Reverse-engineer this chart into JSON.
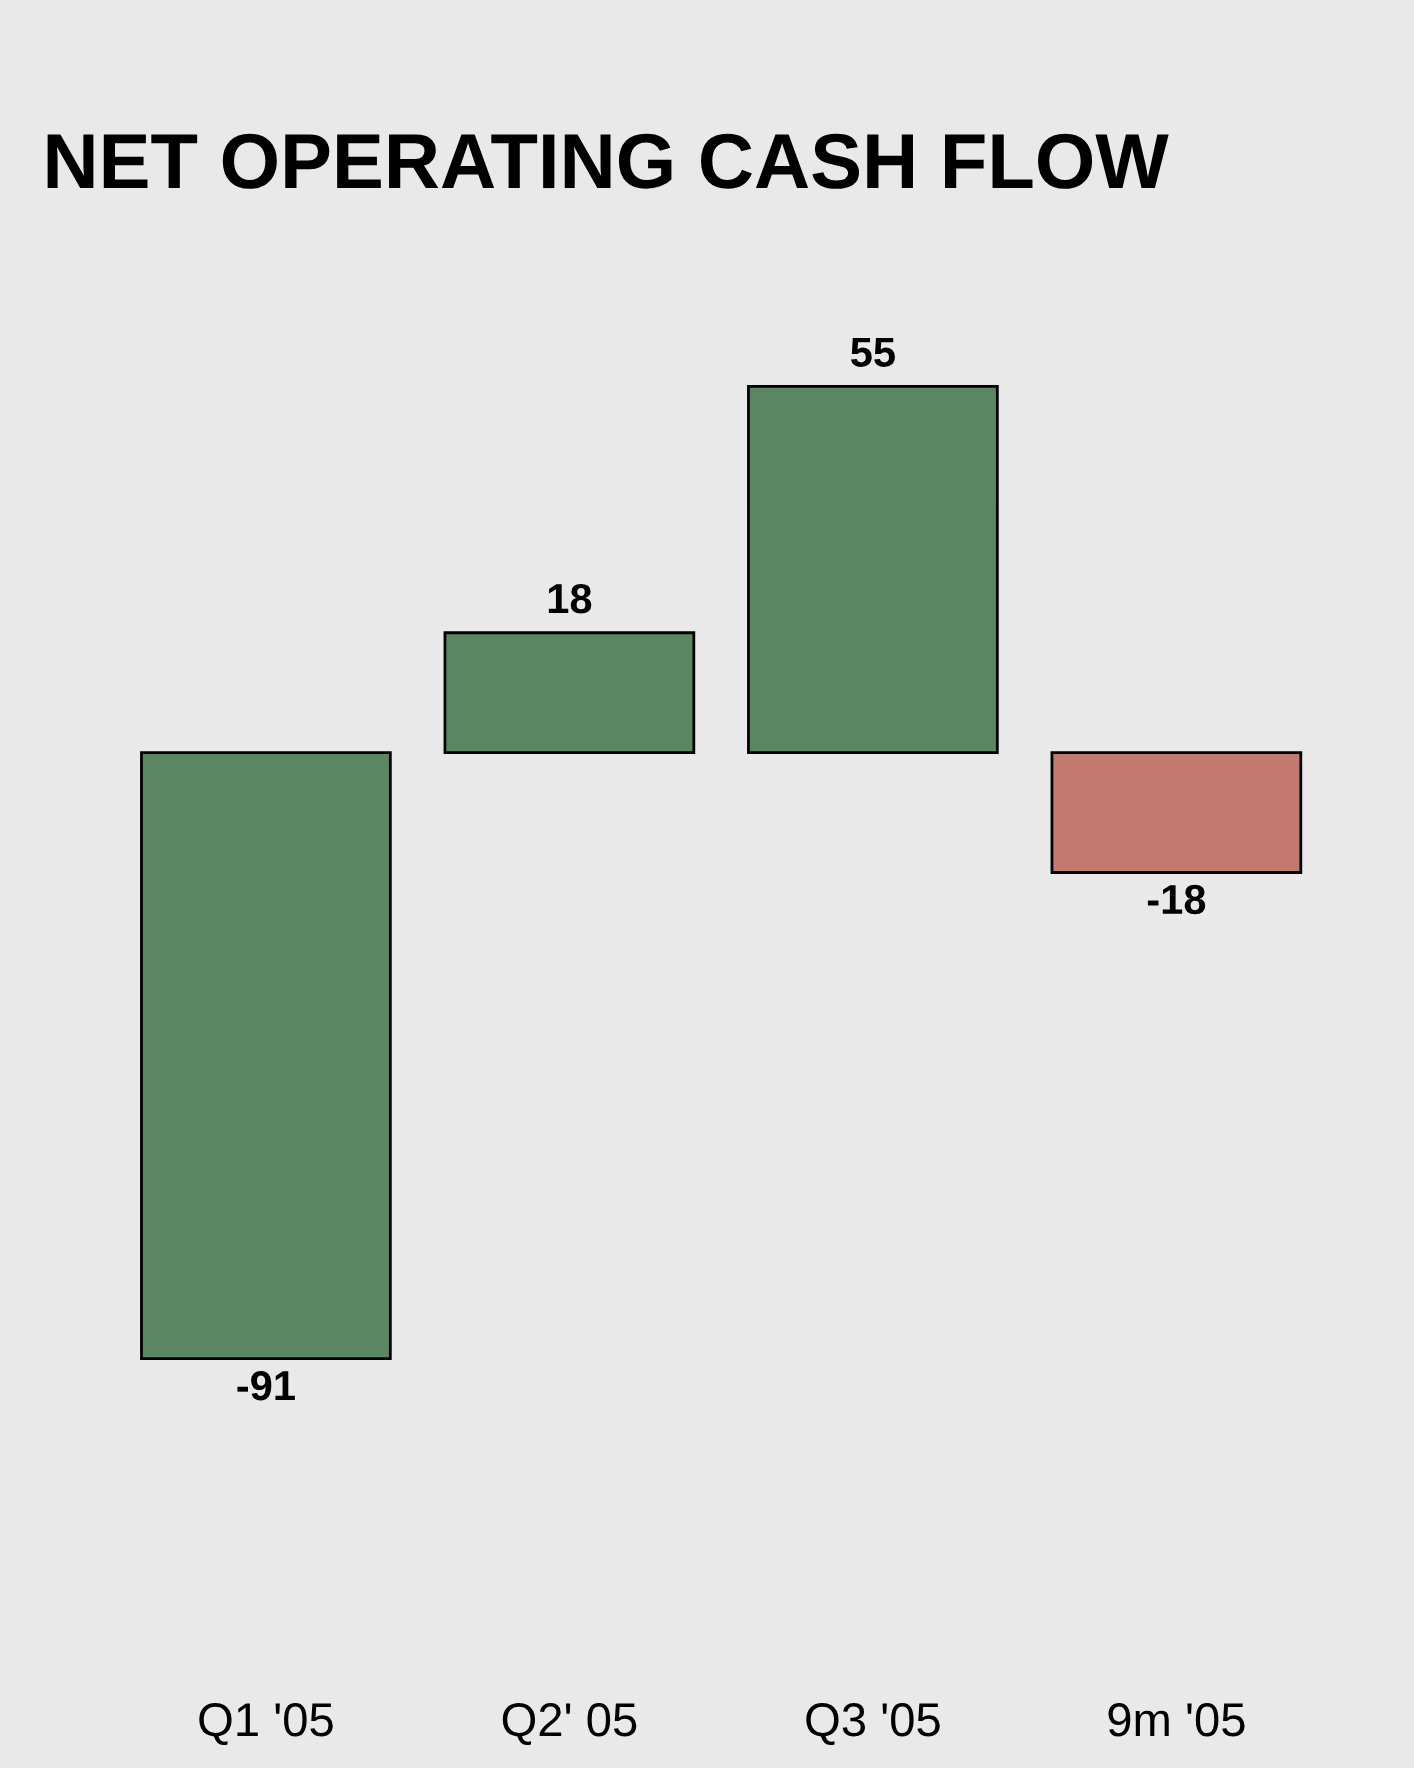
{
  "chart_data": {
    "type": "bar",
    "title": "NET OPERATING CASH FLOW",
    "categories": [
      "Q1 '05",
      "Q2' 05",
      "Q3 '05",
      "9m '05"
    ],
    "values": [
      -91,
      18,
      55,
      -18
    ],
    "colors": [
      "#5a8762",
      "#5a8762",
      "#5a8762",
      "#c27a70"
    ],
    "data_labels": true,
    "grid": false,
    "legend": false
  }
}
